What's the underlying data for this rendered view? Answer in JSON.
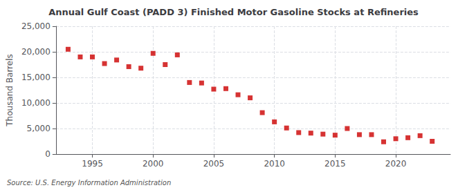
{
  "chart_data": {
    "type": "scatter",
    "title": "Annual Gulf Coast (PADD 3) Finished Motor Gasoline Stocks at Refineries",
    "ylabel": "Thousand Barrels",
    "annotation": "Source: U.S. Energy Information Administration",
    "x": [
      1993,
      1994,
      1995,
      1996,
      1997,
      1998,
      1999,
      2000,
      2001,
      2002,
      2003,
      2004,
      2005,
      2006,
      2007,
      2008,
      2009,
      2010,
      2011,
      2012,
      2013,
      2014,
      2015,
      2016,
      2017,
      2018,
      2019,
      2020,
      2021,
      2022,
      2023
    ],
    "values": [
      20500,
      19000,
      19000,
      17700,
      18400,
      17100,
      16800,
      19700,
      17500,
      19400,
      14000,
      13900,
      12700,
      12800,
      11600,
      11000,
      8100,
      6300,
      5100,
      4200,
      4100,
      3900,
      3700,
      5000,
      3800,
      3800,
      2400,
      3000,
      3200,
      3600,
      2500
    ],
    "color": "#cc0000",
    "marker": "square",
    "xlim": [
      1992.0,
      2024.5
    ],
    "xticks": [
      1995,
      2000,
      2005,
      2010,
      2015,
      2020
    ],
    "ylim": [
      0,
      25000
    ],
    "yticks": [
      0,
      {
        "value": 5000,
        "label": "5,000"
      },
      {
        "value": 10000,
        "label": "10,000"
      },
      {
        "value": 15000,
        "label": "15,000"
      },
      {
        "value": 20000,
        "label": "20,000"
      },
      {
        "value": 25000,
        "label": "25,000"
      }
    ],
    "grid": true
  }
}
